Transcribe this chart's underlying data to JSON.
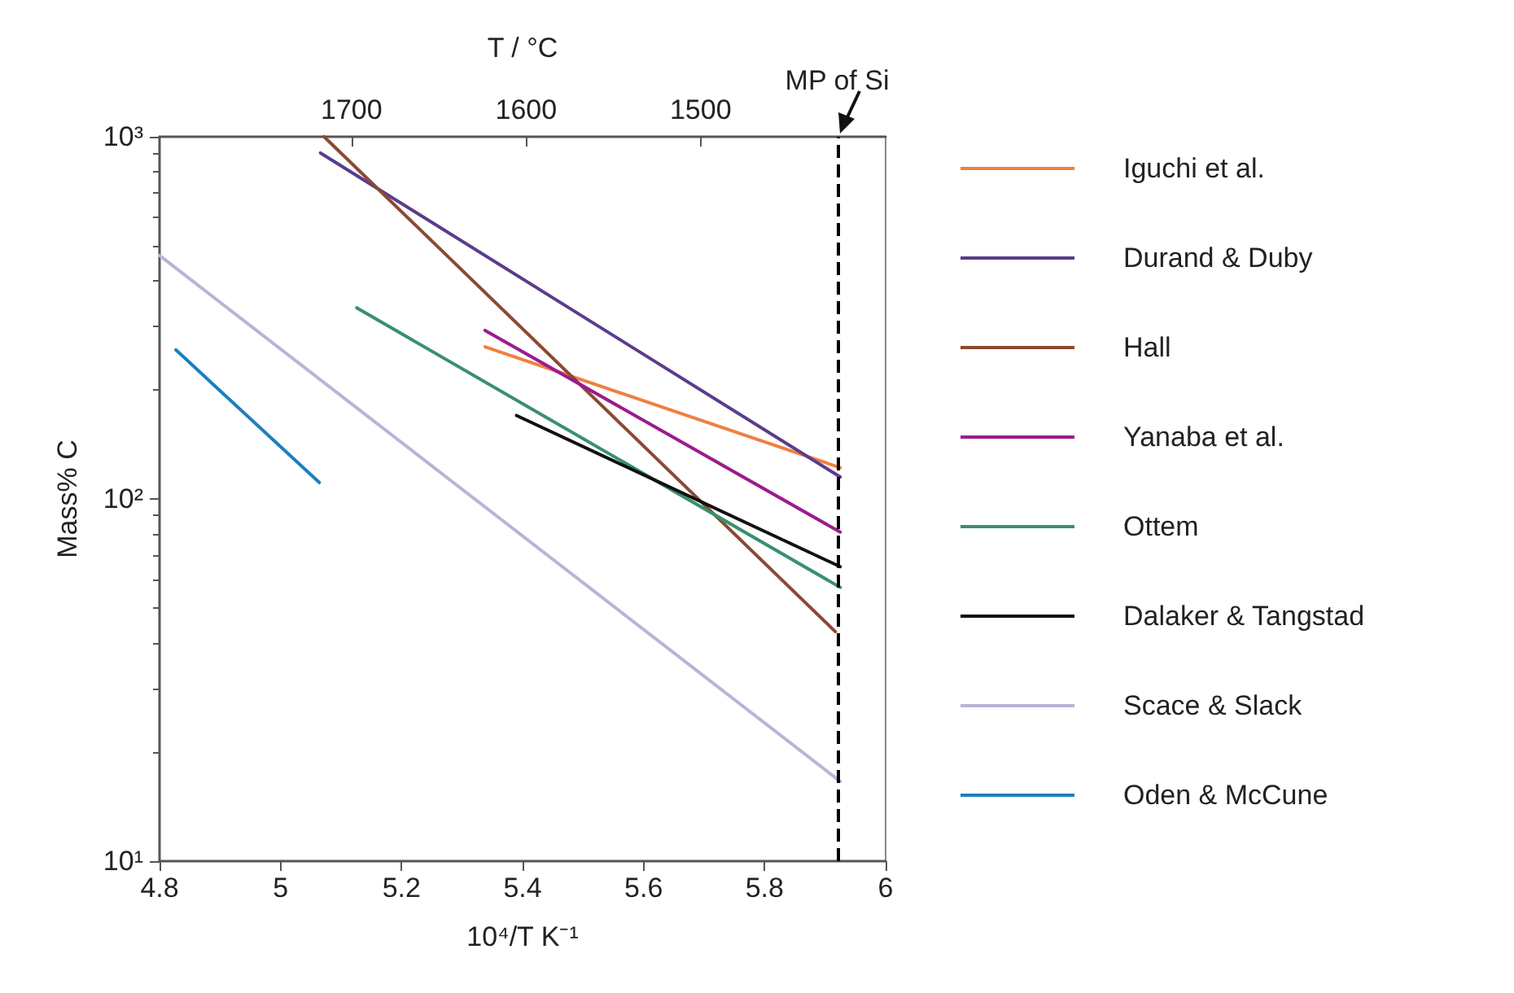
{
  "chart_data": {
    "type": "line",
    "xlabel": "10⁴/T K⁻¹",
    "ylabel": "Mass% C",
    "x2label": "T / °C",
    "xlim": [
      4.8,
      6
    ],
    "xticks": [
      4.8,
      5,
      5.2,
      5.4,
      5.6,
      5.8,
      6
    ],
    "x2lim": [
      1810,
      1394
    ],
    "x2ticks": [
      1700,
      1600,
      1500
    ],
    "ylim": [
      10,
      1000
    ],
    "yticks": [
      {
        "value": 10,
        "label": "10¹"
      },
      {
        "value": 100,
        "label": "10²"
      },
      {
        "value": 1000,
        "label": "10³"
      }
    ],
    "log": "y",
    "grid": false,
    "legend": "right",
    "marker": "none",
    "line_style": "solid",
    "ref_lines": [
      {
        "axis": "x",
        "value": 5.925,
        "label": "MP of Si",
        "color": "#000000",
        "line_style": "dashed"
      }
    ],
    "series": [
      {
        "name": "Iguchi et al.",
        "color": "#f08040",
        "x": [
          5.338,
          5.925
        ],
        "values": [
          263,
          122
        ]
      },
      {
        "name": "Durand & Duby",
        "color": "#5a3c8c",
        "x": [
          5.066,
          5.925
        ],
        "values": [
          902,
          115
        ]
      },
      {
        "name": "Hall",
        "color": "#8b4a32",
        "x": [
          5.072,
          5.917
        ],
        "values": [
          1000,
          43
        ]
      },
      {
        "name": "Yanaba et al.",
        "color": "#9b1b8e",
        "x": [
          5.338,
          5.925
        ],
        "values": [
          292,
          81
        ]
      },
      {
        "name": "Ottem",
        "color": "#3a8f6e",
        "x": [
          5.126,
          5.925
        ],
        "values": [
          337,
          57
        ]
      },
      {
        "name": "Dalaker & Tangstad",
        "color": "#111111",
        "x": [
          5.39,
          5.925
        ],
        "values": [
          170,
          65
        ]
      },
      {
        "name": "Scace & Slack",
        "color": "#b8b4d8",
        "x": [
          4.8,
          5.925
        ],
        "values": [
          470,
          16.6
        ]
      },
      {
        "name": "Oden & McCune",
        "color": "#1a7fc0",
        "x": [
          4.827,
          5.064
        ],
        "values": [
          258,
          111
        ]
      }
    ]
  }
}
